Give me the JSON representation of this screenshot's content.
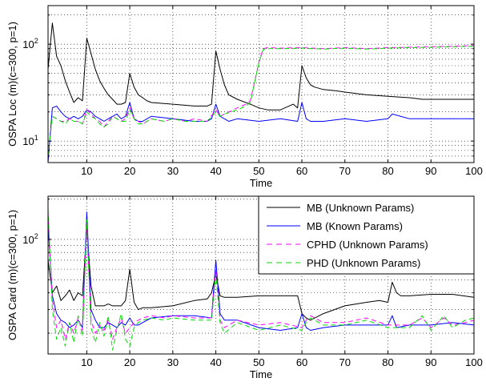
{
  "chart_data": [
    {
      "type": "line",
      "xlabel": "Time",
      "ylabel": "OSPA Loc (m)(c=300, p=1)",
      "xlim": [
        1,
        100
      ],
      "ylim": [
        6,
        250
      ],
      "yscale": "log",
      "grid": true,
      "xticks": [
        "10",
        "20",
        "30",
        "40",
        "50",
        "60",
        "70",
        "80",
        "90",
        "100"
      ],
      "yticks": [
        {
          "base": "10",
          "exp": "1",
          "value": 10
        },
        {
          "base": "10",
          "exp": "2",
          "value": 100
        }
      ],
      "series": [
        {
          "name": "MB (Unknown Params)",
          "color": "#000000",
          "dash": "solid",
          "x": [
            1,
            2,
            3,
            4,
            5,
            6,
            7,
            8,
            9,
            10,
            11,
            12,
            13,
            14,
            15,
            16,
            17,
            18,
            19,
            20,
            21,
            22,
            23,
            24,
            25,
            30,
            35,
            38,
            39,
            40,
            41,
            42,
            43,
            45,
            48,
            50,
            52,
            55,
            58,
            59,
            60,
            61,
            62,
            63,
            65,
            68,
            70,
            75,
            80,
            85,
            88,
            90,
            95,
            100
          ],
          "y": [
            55,
            165,
            75,
            60,
            42,
            32,
            25,
            28,
            26,
            115,
            80,
            55,
            42,
            35,
            30,
            27,
            24,
            24,
            25,
            50,
            36,
            30,
            28,
            26,
            25,
            24,
            23,
            23,
            24,
            85,
            55,
            38,
            30,
            27,
            24,
            22,
            21,
            21,
            24,
            22,
            60,
            45,
            38,
            36,
            34,
            33,
            32,
            30,
            29,
            28,
            27,
            27,
            27,
            27
          ]
        },
        {
          "name": "MB (Known Params)",
          "color": "#0000ff",
          "dash": "solid",
          "x": [
            1,
            2,
            3,
            4,
            5,
            6,
            7,
            8,
            9,
            10,
            11,
            12,
            13,
            14,
            15,
            16,
            17,
            18,
            19,
            20,
            21,
            22,
            23,
            24,
            25,
            30,
            35,
            38,
            39,
            40,
            41,
            42,
            43,
            45,
            50,
            55,
            59,
            60,
            61,
            62,
            65,
            70,
            75,
            80,
            81,
            85,
            90,
            95,
            100
          ],
          "y": [
            6,
            22,
            23,
            20,
            18,
            17,
            18,
            17,
            18,
            21,
            20,
            18,
            17,
            16,
            17,
            18,
            19,
            17,
            18,
            25,
            17,
            16,
            16,
            17,
            18,
            17,
            16,
            16,
            17,
            24,
            18,
            17,
            16,
            17,
            16,
            17,
            16,
            25,
            17,
            16,
            16,
            17,
            16,
            17,
            19,
            17,
            17,
            17,
            17
          ]
        },
        {
          "name": "CPHD (Unknown Params)",
          "color": "#ff00ff",
          "dash": "dashed",
          "x": [
            1,
            2,
            3,
            4,
            5,
            6,
            7,
            8,
            9,
            10,
            11,
            12,
            13,
            14,
            15,
            16,
            17,
            18,
            19,
            20,
            21,
            22,
            23,
            24,
            25,
            28,
            30,
            33,
            35,
            38,
            40,
            41,
            42,
            45,
            47,
            48,
            49,
            50,
            51,
            52,
            55,
            60,
            65,
            70,
            75,
            80,
            85,
            90,
            95,
            100
          ],
          "y": [
            7,
            18,
            17,
            16,
            16,
            17,
            16,
            16,
            15,
            21,
            19,
            17,
            16,
            14,
            16,
            18,
            17,
            16,
            17,
            22,
            17,
            16,
            15,
            16,
            17,
            16,
            17,
            16,
            17,
            16,
            21,
            18,
            19,
            22,
            24,
            26,
            40,
            65,
            90,
            92,
            91,
            92,
            90,
            92,
            90,
            92,
            93,
            94,
            95,
            97
          ]
        },
        {
          "name": "PHD (Unknown Params)",
          "color": "#00dd00",
          "dash": "dashed",
          "x": [
            1,
            2,
            3,
            4,
            5,
            6,
            7,
            8,
            9,
            10,
            11,
            12,
            13,
            14,
            15,
            16,
            17,
            18,
            19,
            20,
            21,
            22,
            23,
            24,
            25,
            28,
            30,
            33,
            35,
            38,
            40,
            41,
            42,
            45,
            47,
            48,
            49,
            50,
            51,
            52,
            55,
            60,
            65,
            70,
            75,
            80,
            85,
            90,
            95,
            100
          ],
          "y": [
            7,
            18,
            17,
            16,
            15,
            17,
            16,
            16,
            15,
            20,
            18,
            17,
            15,
            14,
            15,
            18,
            17,
            16,
            16,
            21,
            17,
            15,
            15,
            16,
            17,
            16,
            17,
            16,
            16,
            16,
            20,
            18,
            19,
            21,
            23,
            25,
            40,
            64,
            88,
            90,
            90,
            91,
            89,
            91,
            89,
            91,
            92,
            93,
            94,
            95
          ]
        }
      ]
    },
    {
      "type": "line",
      "xlabel": "Time",
      "ylabel": "OSPA Card (m)(c=300, p=1)",
      "xlim": [
        1,
        100
      ],
      "ylim": [
        14,
        210
      ],
      "yscale": "log",
      "grid": true,
      "xticks": [
        "10",
        "20",
        "30",
        "40",
        "50",
        "60",
        "70",
        "80",
        "90",
        "100"
      ],
      "yticks": [
        {
          "base": "10",
          "exp": "2",
          "value": 100
        }
      ],
      "legend": {
        "placement": "top-right",
        "entries": [
          "MB (Unknown Params)",
          "MB (Known Params)",
          "CPHD (Unknown Params)",
          "PHD (Unknown Params)"
        ]
      },
      "series": [
        {
          "name": "MB (Unknown Params)",
          "color": "#000000",
          "dash": "solid",
          "x": [
            1,
            2,
            3,
            4,
            5,
            6,
            7,
            8,
            9,
            10,
            11,
            12,
            13,
            14,
            15,
            16,
            17,
            18,
            19,
            20,
            21,
            22,
            23,
            25,
            30,
            35,
            38,
            39,
            40,
            41,
            42,
            45,
            50,
            55,
            58,
            59,
            60,
            61,
            62,
            65,
            70,
            75,
            78,
            80,
            81,
            82,
            83,
            85,
            90,
            95,
            100
          ],
          "y": [
            70,
            40,
            45,
            35,
            38,
            42,
            35,
            40,
            38,
            120,
            45,
            32,
            32,
            32,
            33,
            32,
            32,
            32,
            35,
            60,
            34,
            30,
            31,
            31,
            32,
            35,
            36,
            40,
            55,
            38,
            37,
            37,
            38,
            38,
            38,
            38,
            28,
            26,
            25,
            28,
            32,
            34,
            35,
            34,
            48,
            40,
            38,
            38,
            39,
            39,
            37
          ]
        },
        {
          "name": "MB (Known Params)",
          "color": "#0000ff",
          "dash": "solid",
          "x": [
            1,
            2,
            3,
            4,
            5,
            6,
            7,
            8,
            9,
            10,
            11,
            12,
            13,
            14,
            15,
            16,
            17,
            18,
            19,
            20,
            21,
            22,
            23,
            25,
            30,
            35,
            39,
            40,
            41,
            42,
            45,
            50,
            55,
            59,
            60,
            61,
            62,
            65,
            70,
            75,
            80,
            81,
            82,
            85,
            90,
            95,
            100
          ],
          "y": [
            130,
            38,
            28,
            25,
            24,
            22,
            23,
            25,
            22,
            160,
            30,
            25,
            22,
            22,
            24,
            23,
            22,
            24,
            23,
            26,
            23,
            23,
            24,
            26,
            27,
            27,
            26,
            70,
            28,
            25,
            25,
            22,
            21,
            22,
            28,
            22,
            21,
            22,
            23,
            23,
            23,
            27,
            22,
            23,
            23,
            24,
            23
          ]
        },
        {
          "name": "CPHD (Unknown Params)",
          "color": "#ff00ff",
          "dash": "dashed",
          "x": [
            1,
            2,
            3,
            4,
            5,
            6,
            7,
            8,
            9,
            10,
            11,
            12,
            13,
            14,
            15,
            16,
            17,
            18,
            19,
            20,
            21,
            22,
            23,
            25,
            28,
            30,
            35,
            39,
            40,
            41,
            42,
            45,
            50,
            55,
            60,
            61,
            62,
            65,
            70,
            75,
            80,
            85,
            88,
            90,
            93,
            95,
            98,
            100
          ],
          "y": [
            160,
            35,
            22,
            25,
            18,
            24,
            20,
            26,
            21,
            130,
            25,
            20,
            23,
            21,
            25,
            18,
            22,
            26,
            20,
            22,
            24,
            25,
            26,
            27,
            26,
            27,
            26,
            26,
            60,
            25,
            22,
            25,
            23,
            24,
            22,
            25,
            27,
            24,
            24,
            26,
            23,
            23,
            26,
            22,
            26,
            23,
            24,
            25
          ]
        },
        {
          "name": "PHD (Unknown Params)",
          "color": "#00dd00",
          "dash": "dashed",
          "x": [
            1,
            2,
            3,
            4,
            5,
            6,
            7,
            8,
            9,
            10,
            11,
            12,
            13,
            14,
            15,
            16,
            17,
            18,
            19,
            20,
            21,
            22,
            23,
            25,
            28,
            30,
            35,
            39,
            40,
            41,
            42,
            45,
            50,
            55,
            60,
            61,
            62,
            65,
            70,
            75,
            80,
            85,
            88,
            90,
            93,
            95,
            98,
            100
          ],
          "y": [
            170,
            30,
            18,
            22,
            16,
            24,
            17,
            27,
            19,
            140,
            22,
            17,
            24,
            19,
            27,
            15,
            21,
            28,
            18,
            16,
            22,
            24,
            25,
            26,
            25,
            26,
            25,
            25,
            55,
            24,
            20,
            24,
            21,
            23,
            21,
            24,
            26,
            23,
            23,
            25,
            22,
            22,
            27,
            21,
            27,
            22,
            25,
            26
          ]
        }
      ]
    }
  ]
}
